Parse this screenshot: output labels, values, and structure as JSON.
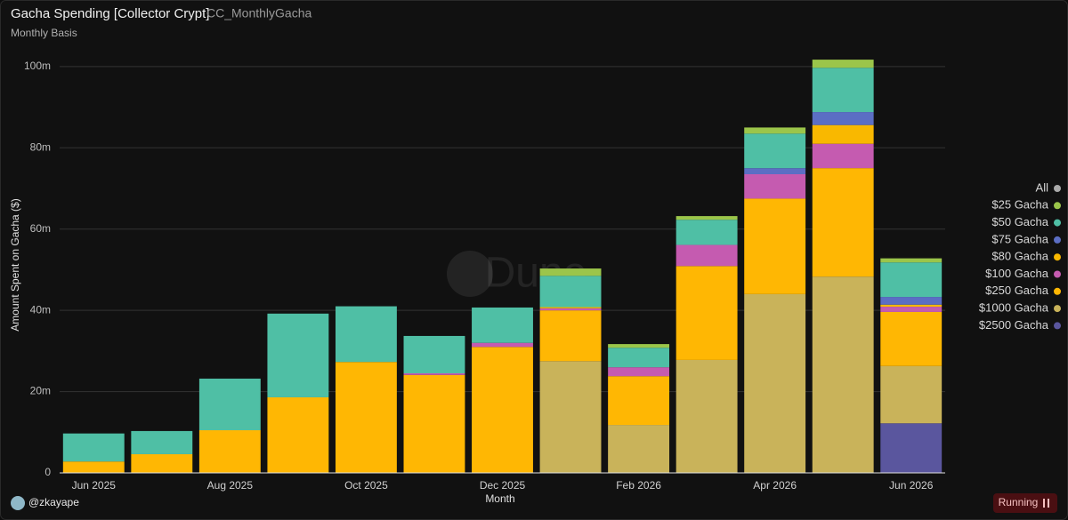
{
  "chart_data": {
    "type": "stacked_bar",
    "title": "Gacha Spending [Collector Crypt]",
    "query_name": "CC_MonthlyGacha",
    "subtitle": "Monthly Basis",
    "y_label": "Amount Spent on Gacha ($)",
    "x_label": "Month",
    "watermark": "Dune",
    "categories": [
      "Jun 2025",
      null,
      "Aug 2025",
      null,
      "Oct 2025",
      null,
      "Dec 2025",
      null,
      "Feb 2026",
      null,
      "Apr 2026",
      null,
      "Jun 2026"
    ],
    "ylim": [
      0,
      105
    ],
    "yticks": [
      0,
      {
        "value": 20,
        "label": "20m"
      },
      {
        "value": 40,
        "label": "40m"
      },
      {
        "value": 60,
        "label": "60m"
      },
      {
        "value": 80,
        "label": "80m"
      },
      {
        "value": 100,
        "label": "100m"
      }
    ],
    "grid": true,
    "legend": "right",
    "series": [
      {
        "name": "All",
        "color": "#aaaaaa",
        "values": [
          null,
          null,
          null,
          null,
          null,
          null,
          null,
          null,
          null,
          null,
          null,
          null,
          null
        ]
      },
      {
        "name": "$25 Gacha",
        "color": "#9bc54a",
        "values": [
          null,
          null,
          null,
          null,
          null,
          null,
          null,
          1.8,
          0.9,
          0.9,
          1.5,
          2.0,
          1.0
        ]
      },
      {
        "name": "$50 Gacha",
        "color": "#4fbfa5",
        "values": [
          6.9,
          5.7,
          12.7,
          20.6,
          13.7,
          9.2,
          8.7,
          7.7,
          4.8,
          6.2,
          8.5,
          10.9,
          8.5
        ]
      },
      {
        "name": "$75 Gacha",
        "color": "#5b6ec4",
        "values": [
          null,
          null,
          null,
          null,
          null,
          null,
          null,
          null,
          null,
          null,
          1.5,
          3.2,
          1.9
        ]
      },
      {
        "name": "$80 Gacha",
        "color": "#f9b800",
        "values": [
          null,
          null,
          null,
          null,
          null,
          null,
          null,
          0.3,
          null,
          null,
          null,
          4.6,
          0.5
        ]
      },
      {
        "name": "$100 Gacha",
        "color": "#c55bb0",
        "values": [
          null,
          null,
          null,
          null,
          null,
          0.4,
          1.0,
          0.5,
          2.2,
          5.2,
          6.0,
          6.0,
          1.3
        ]
      },
      {
        "name": "$250 Gacha",
        "color": "#ffb703",
        "values": [
          2.8,
          4.6,
          10.5,
          18.6,
          27.3,
          24.1,
          31.0,
          12.5,
          12.0,
          23.1,
          23.5,
          26.7,
          13.3
        ]
      },
      {
        "name": "$1000 Gacha",
        "color": "#c9b35a",
        "values": [
          null,
          null,
          null,
          null,
          null,
          null,
          null,
          27.5,
          11.8,
          27.8,
          44.0,
          48.3,
          14.1
        ]
      },
      {
        "name": "$2500 Gacha",
        "color": "#5a569e",
        "values": [
          null,
          null,
          null,
          null,
          null,
          null,
          null,
          null,
          null,
          null,
          null,
          null,
          12.2
        ]
      }
    ]
  },
  "footer": {
    "user": "@zkayape",
    "status": "Running"
  }
}
